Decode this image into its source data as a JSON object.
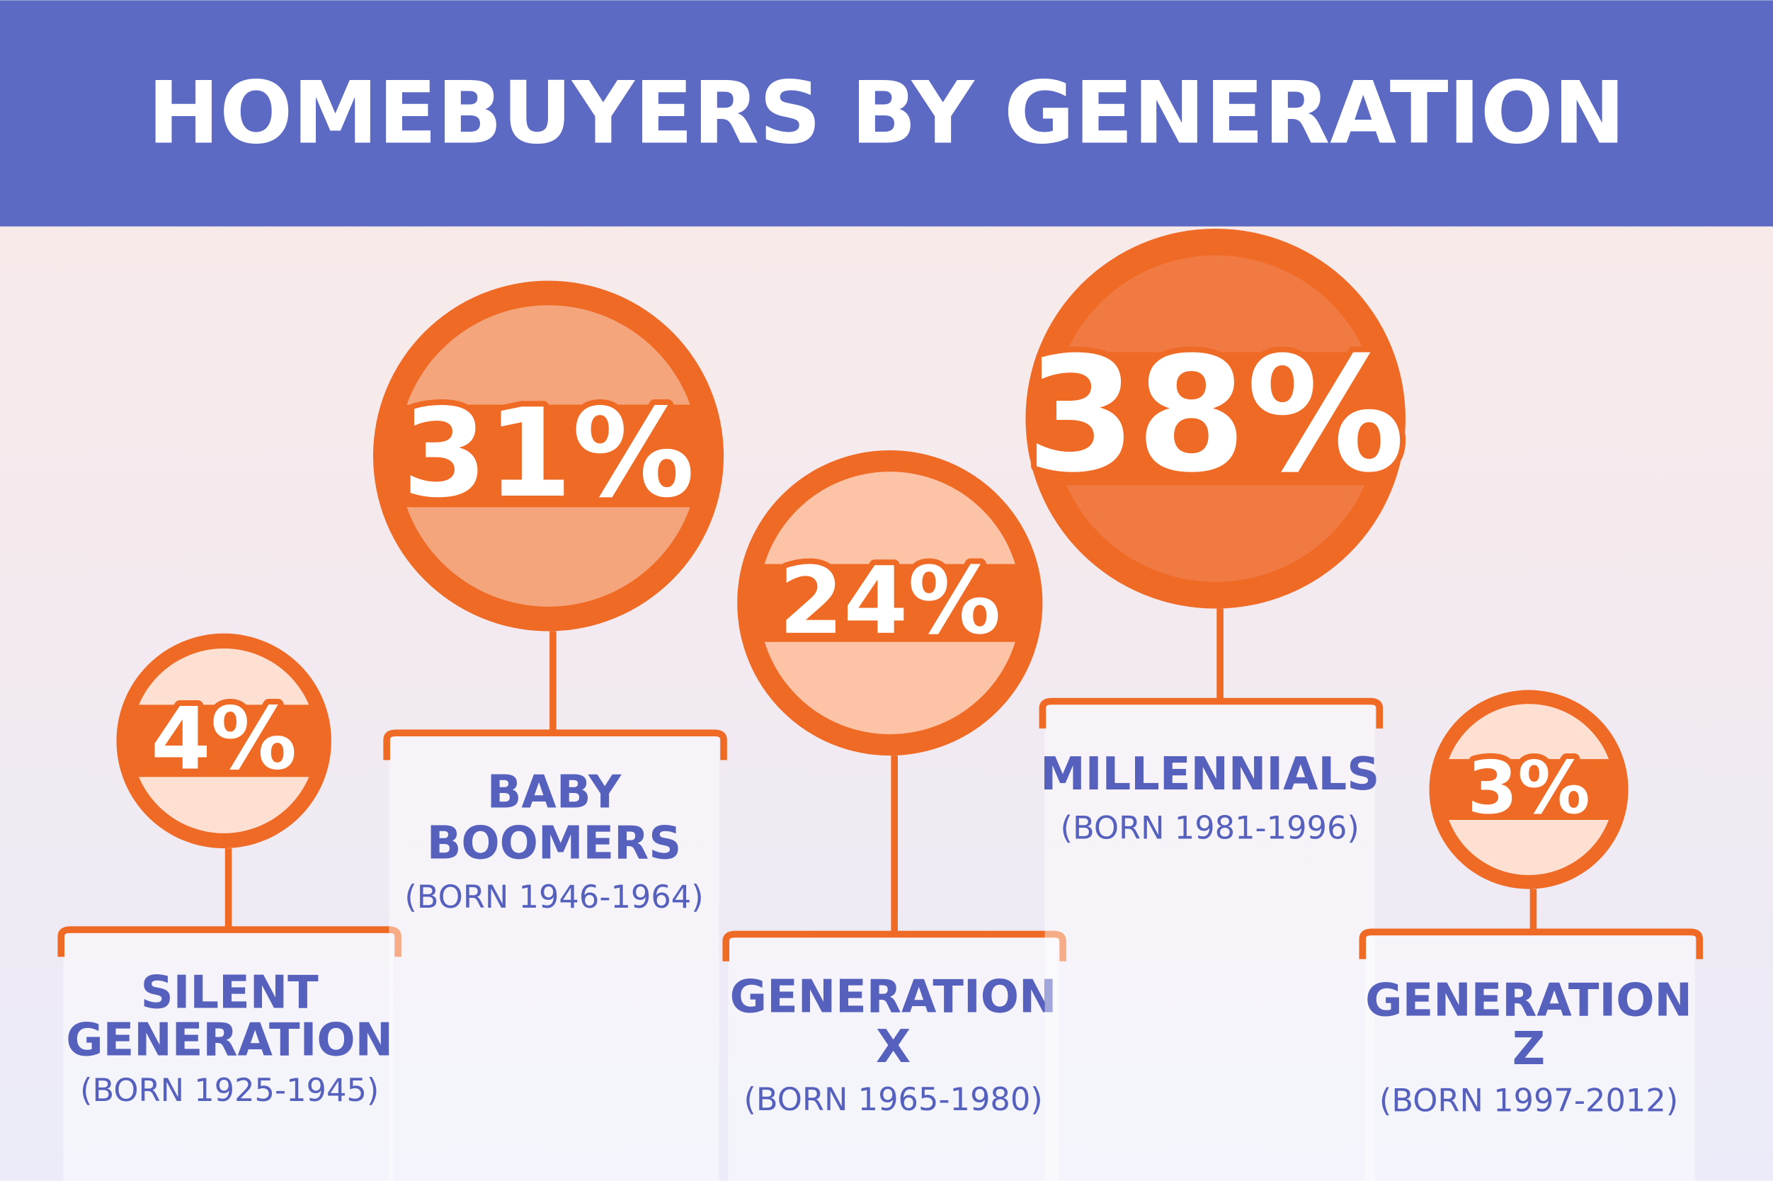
{
  "header": {
    "title": "HOMEBUYERS BY GENERATION"
  },
  "items": [
    {
      "percent": "4%",
      "name_lines": [
        "SILENT",
        "GENERATION"
      ],
      "born": "(BORN 1925-1945)"
    },
    {
      "percent": "31%",
      "name_lines": [
        "BABY",
        "BOOMERS"
      ],
      "born": "(BORN 1946-1964)"
    },
    {
      "percent": "24%",
      "name_lines": [
        "GENERATION",
        "X"
      ],
      "born": "(BORN 1965-1980)"
    },
    {
      "percent": "38%",
      "name_lines": [
        "MILLENNIALS"
      ],
      "born": "(BORN 1981-1996)"
    },
    {
      "percent": "3%",
      "name_lines": [
        "GENERATION",
        "Z"
      ],
      "born": "(BORN 1997-2012)"
    }
  ]
}
